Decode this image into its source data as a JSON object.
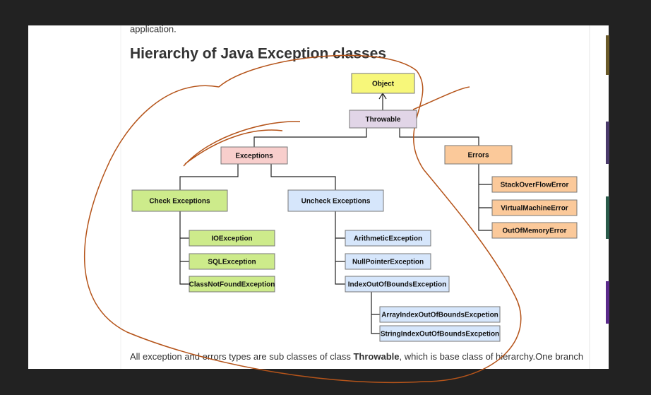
{
  "article": {
    "intro_tail": "application.",
    "heading": "Hierarchy of Java Exception classes",
    "paragraph": {
      "before": "All exception and errors types are sub classes of class ",
      "bold": "Throwable",
      "after": ", which is base class of hierarchy.One branch"
    }
  },
  "diagram": {
    "nodes": [
      {
        "label": "Object"
      },
      {
        "label": "Throwable"
      },
      {
        "label": "Exceptions"
      },
      {
        "label": "Errors"
      },
      {
        "label": "Check Exceptions"
      },
      {
        "label": "Uncheck Exceptions"
      },
      {
        "label": "IOException"
      },
      {
        "label": "SQLException"
      },
      {
        "label": "ClassNotFoundException"
      },
      {
        "label": "ArithmeticException"
      },
      {
        "label": "NullPointerException"
      },
      {
        "label": "IndexOutOfBoundsException"
      },
      {
        "label": "ArrayIndexOutOfBoundsExcpetion"
      },
      {
        "label": "StringIndexOutOfBoundsExcpetion"
      },
      {
        "label": "StackOverFlowError"
      },
      {
        "label": "VirtualMachineError"
      },
      {
        "label": "OutOfMemoryError"
      }
    ]
  }
}
